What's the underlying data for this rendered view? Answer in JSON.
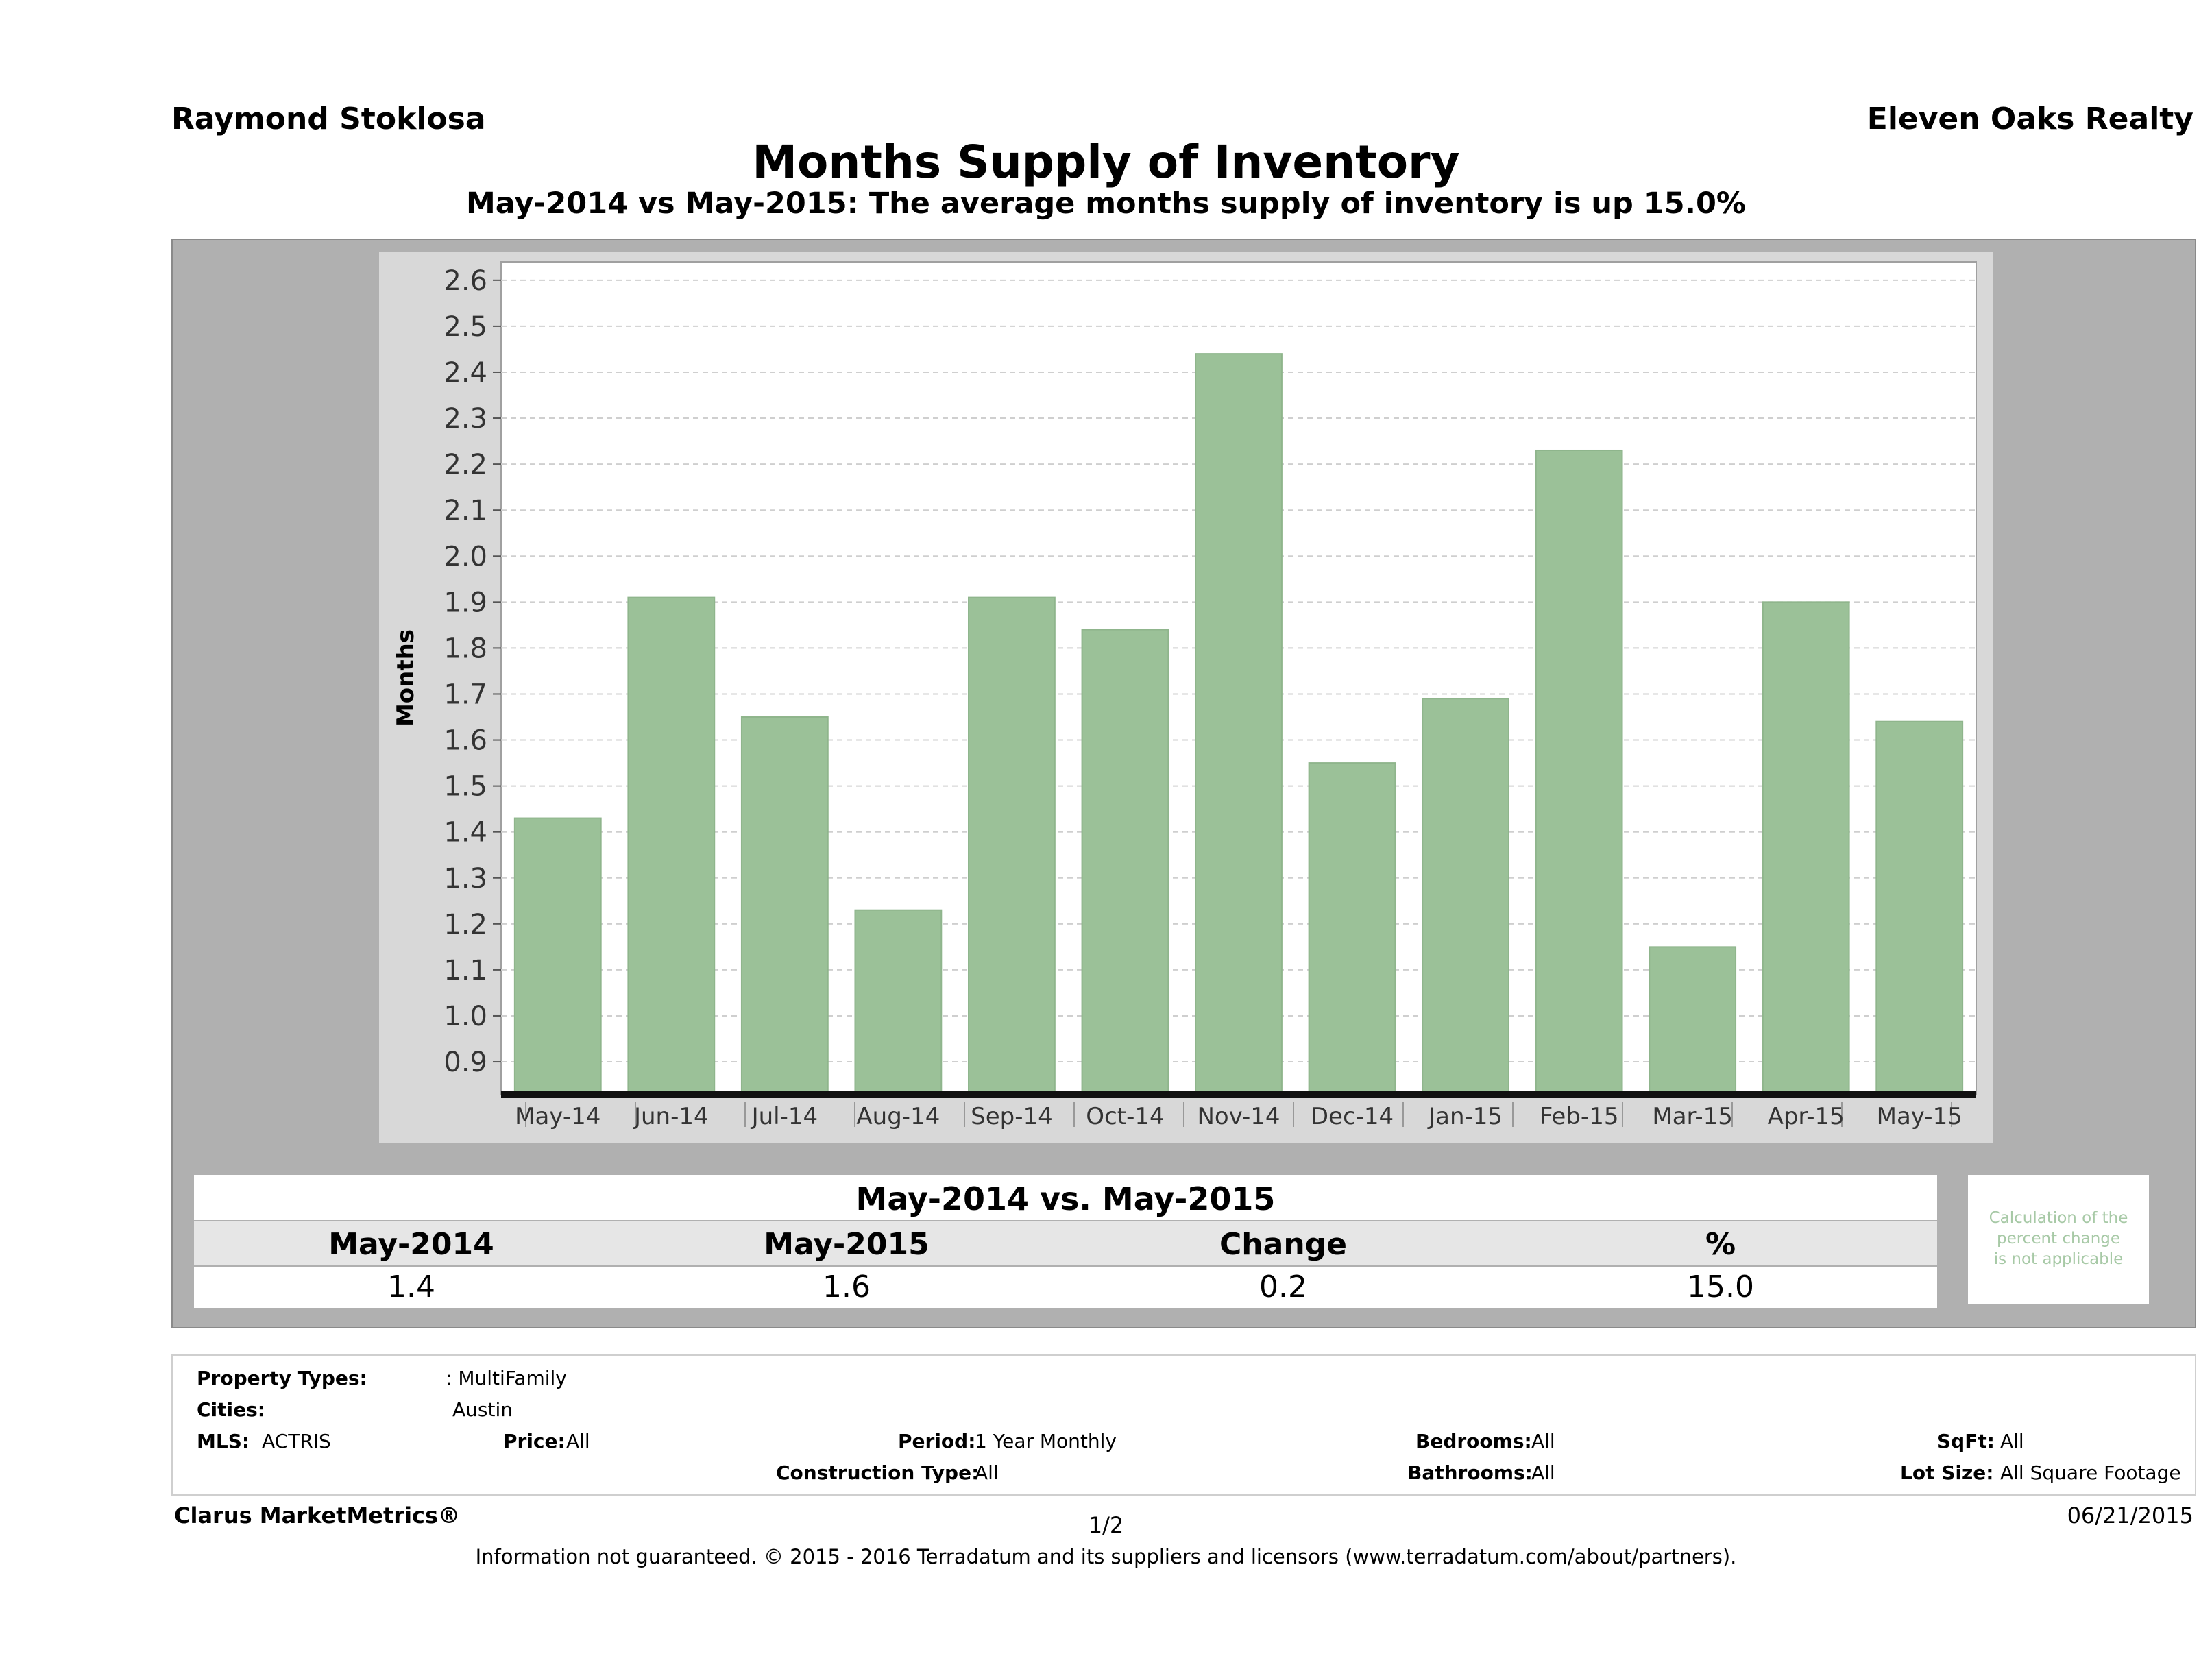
{
  "header": {
    "agent": "Raymond Stoklosa",
    "company": "Eleven Oaks Realty",
    "title": "Months Supply of Inventory",
    "subtitle": "May-2014 vs May-2015: The average months supply of inventory is up 15.0%"
  },
  "chart_data": {
    "type": "bar",
    "categories": [
      "May-14",
      "Jun-14",
      "Jul-14",
      "Aug-14",
      "Sep-14",
      "Oct-14",
      "Nov-14",
      "Dec-14",
      "Jan-15",
      "Feb-15",
      "Mar-15",
      "Apr-15",
      "May-15"
    ],
    "values": [
      1.43,
      1.91,
      1.65,
      1.23,
      1.91,
      1.84,
      2.44,
      1.55,
      1.69,
      2.23,
      1.15,
      1.9,
      1.64
    ],
    "ylabel": "Months",
    "ylim": [
      0.83,
      2.64
    ],
    "yticks": [
      "0.9",
      "1.0",
      "1.1",
      "1.2",
      "1.3",
      "1.4",
      "1.5",
      "1.6",
      "1.7",
      "1.8",
      "1.9",
      "2.0",
      "2.1",
      "2.2",
      "2.3",
      "2.4",
      "2.5",
      "2.6"
    ],
    "grid": true,
    "bar_color": "#9bc198"
  },
  "stats": {
    "heading": "May-2014 vs. May-2015",
    "columns": [
      "May-2014",
      "May-2015",
      "Change",
      "%"
    ],
    "values": [
      "1.4",
      "1.6",
      "0.2",
      "15.0"
    ],
    "note": [
      "Calculation of the",
      "percent change",
      "is not applicable"
    ]
  },
  "filters": {
    "property_types_label": "Property Types:",
    "property_types_value": ": MultiFamily",
    "cities_label": "Cities:",
    "cities_value": "Austin",
    "mls_label": "MLS:",
    "mls_value": "ACTRIS",
    "price_label": "Price:",
    "price_value": "All",
    "period_label": "Period:",
    "period_value": "1 Year Monthly",
    "bedrooms_label": "Bedrooms:",
    "bedrooms_value": "All",
    "sqft_label": "SqFt:",
    "sqft_value": "All",
    "construction_label": "Construction Type:",
    "construction_value": "All",
    "bathrooms_label": "Bathrooms:",
    "bathrooms_value": "All",
    "lot_label": "Lot Size:",
    "lot_value": "All Square Footage"
  },
  "footer": {
    "brand": "Clarus MarketMetrics®",
    "page": "1/2",
    "date": "06/21/2015",
    "disclaimer": "Information not guaranteed. © 2015 - 2016 Terradatum and its suppliers and licensors (www.terradatum.com/about/partners)."
  }
}
